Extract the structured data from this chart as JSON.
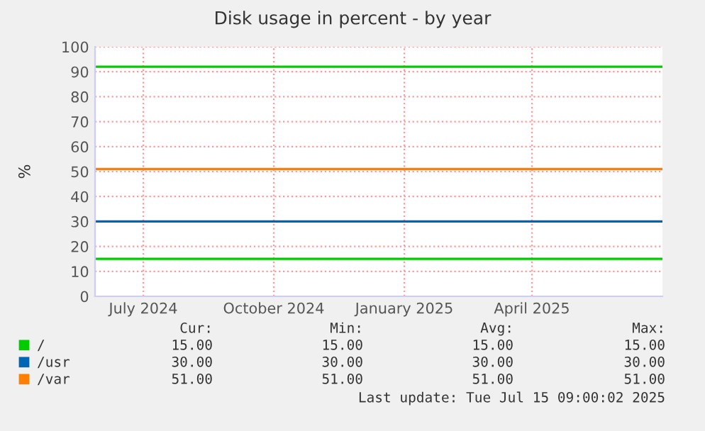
{
  "chart_data": {
    "type": "line",
    "title": "Disk usage in percent - by year",
    "ylabel": "%",
    "x": [
      "2024-06-11",
      "2025-07-16"
    ],
    "xlim": [
      "2024-06-11",
      "2025-07-16"
    ],
    "xticks": [
      {
        "value": "2024-07-15",
        "label": "July 2024"
      },
      {
        "value": "2024-10-15",
        "label": "October 2024"
      },
      {
        "value": "2025-01-15",
        "label": "January 2025"
      },
      {
        "value": "2025-04-15",
        "label": "April 2025"
      }
    ],
    "ylim": [
      0,
      100
    ],
    "yticks": [
      0,
      10,
      20,
      30,
      40,
      50,
      60,
      70,
      80,
      90,
      100
    ],
    "series": [
      {
        "name": "/",
        "color": "#00cc00",
        "values": [
          15,
          15
        ]
      },
      {
        "name": "/usr",
        "color": "#0066b3",
        "values": [
          30,
          30
        ]
      },
      {
        "name": "/var",
        "color": "#ff8000",
        "values": [
          51,
          51
        ]
      }
    ],
    "ref_lines": [
      {
        "axis": "y",
        "value": 92,
        "label": null,
        "color": "#00cc00"
      }
    ],
    "grid": true,
    "legend": "bottom",
    "marker": "none",
    "line_style": "solid",
    "annotations": [
      "Cur:",
      "Min:",
      "Avg:",
      "Max:",
      "15.00",
      "15.00",
      "15.00",
      "15.00",
      "30.00",
      "30.00",
      "30.00",
      "30.00",
      "51.00",
      "51.00",
      "51.00",
      "51.00",
      "Last update: Tue Jul 15 09:00:02 2025"
    ]
  }
}
